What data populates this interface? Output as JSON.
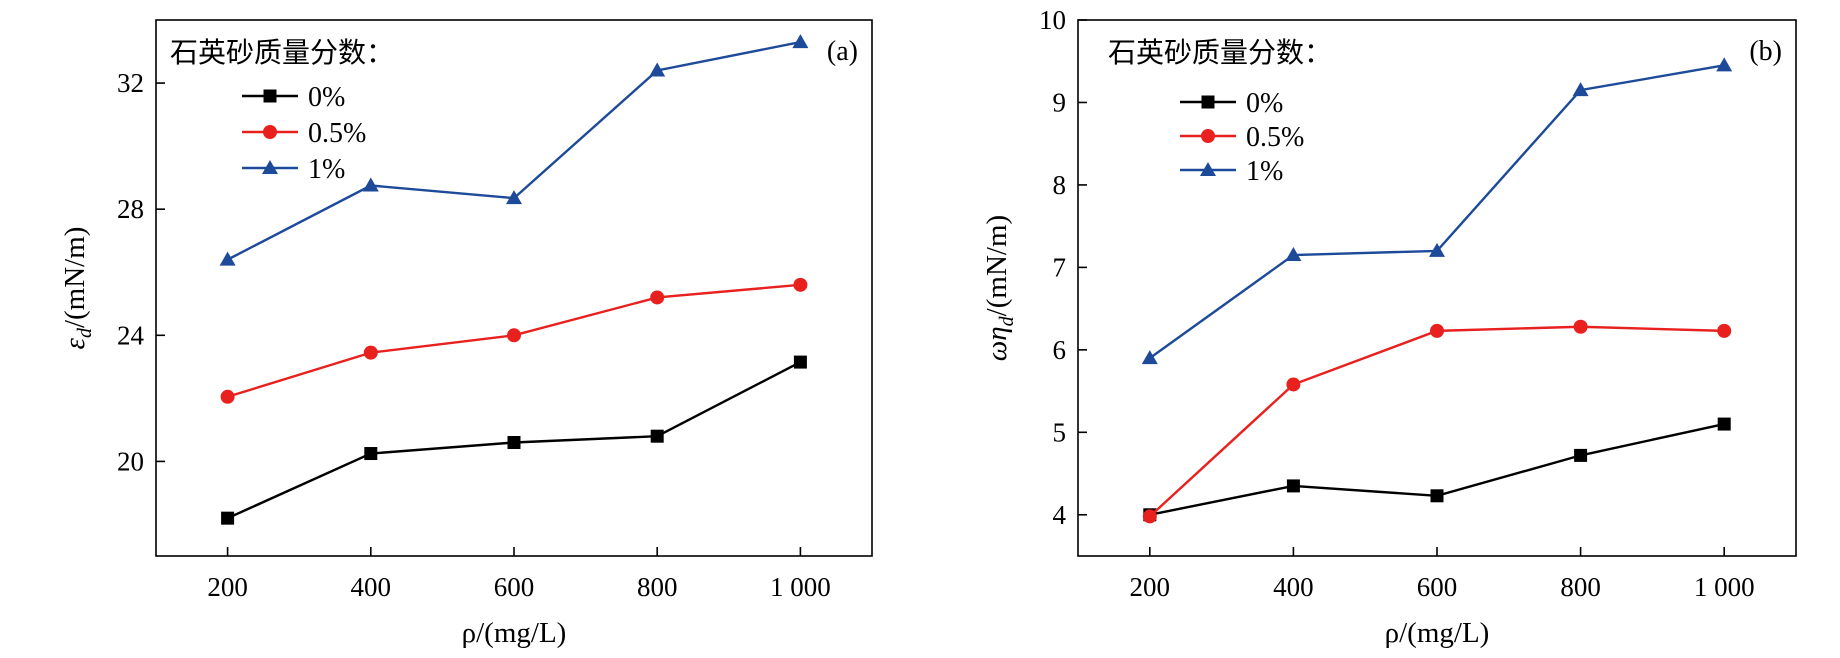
{
  "chart_data": [
    {
      "type": "line",
      "panel_label": "(a)",
      "legend_title": "石英砂质量分数：",
      "legend_position": "top-left",
      "xlabel": "ρ/(mg/L)",
      "ylabel_main": "ε",
      "ylabel_sub": "d",
      "ylabel_unit": "/(mN/m)",
      "x": [
        200,
        400,
        600,
        800,
        1000
      ],
      "x_tick_labels": [
        "200",
        "400",
        "600",
        "800",
        "1 000"
      ],
      "xlim": [
        100,
        1100
      ],
      "ylim": [
        17,
        34
      ],
      "y_ticks": [
        20,
        24,
        28,
        32
      ],
      "y_tick_labels": [
        "20",
        "24",
        "28",
        "32"
      ],
      "grid": false,
      "series": [
        {
          "name": "0%",
          "marker": "square",
          "color": "#000000",
          "values": [
            18.2,
            20.25,
            20.6,
            20.8,
            23.15
          ]
        },
        {
          "name": "0.5%",
          "marker": "circle",
          "color": "#e8201e",
          "values": [
            22.05,
            23.45,
            24.0,
            25.2,
            25.6
          ]
        },
        {
          "name": "1%",
          "marker": "triangle",
          "color": "#1e4a9a",
          "values": [
            26.4,
            28.75,
            28.35,
            32.4,
            33.3
          ]
        }
      ]
    },
    {
      "type": "line",
      "panel_label": "(b)",
      "legend_title": "石英砂质量分数：",
      "legend_position": "top-left",
      "xlabel": "ρ/(mg/L)",
      "ylabel_main": "ωη",
      "ylabel_sub": "d",
      "ylabel_unit": "/(mN/m)",
      "x": [
        200,
        400,
        600,
        800,
        1000
      ],
      "x_tick_labels": [
        "200",
        "400",
        "600",
        "800",
        "1 000"
      ],
      "xlim": [
        100,
        1100
      ],
      "ylim": [
        3.5,
        10
      ],
      "y_ticks": [
        4,
        5,
        6,
        7,
        8,
        9,
        10
      ],
      "y_tick_labels": [
        "4",
        "5",
        "6",
        "7",
        "8",
        "9",
        "10"
      ],
      "grid": false,
      "series": [
        {
          "name": "0%",
          "marker": "square",
          "color": "#000000",
          "values": [
            4.0,
            4.35,
            4.23,
            4.72,
            5.1
          ]
        },
        {
          "name": "0.5%",
          "marker": "circle",
          "color": "#e8201e",
          "values": [
            3.98,
            5.58,
            6.23,
            6.28,
            6.23
          ]
        },
        {
          "name": "1%",
          "marker": "triangle",
          "color": "#1e4a9a",
          "values": [
            5.9,
            7.15,
            7.2,
            9.15,
            9.45
          ]
        }
      ]
    }
  ]
}
